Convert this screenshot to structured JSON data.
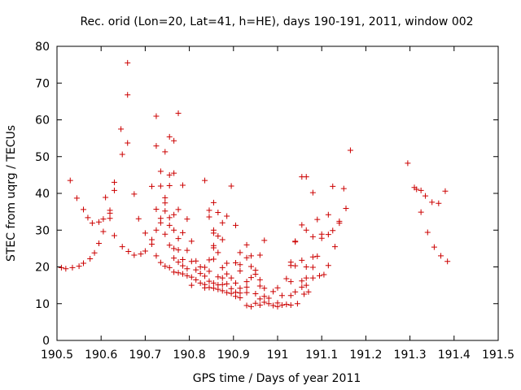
{
  "chart_data": {
    "type": "scatter",
    "title": "Rec. orid (Lon=20, Lat=41, h=HE), days 190-191, 2011, window 002",
    "xlabel": "GPS time / Days of year 2011",
    "ylabel": "STEC from uqrg / TECUs",
    "xlim": [
      190.5,
      191.5
    ],
    "ylim": [
      0,
      80
    ],
    "xticks": [
      190.5,
      190.6,
      190.7,
      190.8,
      190.9,
      191,
      191.1,
      191.2,
      191.3,
      191.4,
      191.5
    ],
    "xtick_labels": [
      "190.5",
      "190.6",
      "190.7",
      "190.8",
      "190.9",
      "191",
      "191.1",
      "191.2",
      "191.3",
      "191.4",
      "191.5"
    ],
    "yticks": [
      0,
      10,
      20,
      30,
      40,
      50,
      60,
      70,
      80
    ],
    "ytick_labels": [
      "0",
      "10",
      "20",
      "30",
      "40",
      "50",
      "60",
      "70",
      "80"
    ],
    "grid": false,
    "marker": "+",
    "marker_color": "#cc0000",
    "points": [
      [
        190.51,
        19.8
      ],
      [
        190.52,
        19.5
      ],
      [
        190.53,
        43.5
      ],
      [
        190.535,
        19.8
      ],
      [
        190.545,
        38.7
      ],
      [
        190.55,
        20.2
      ],
      [
        190.56,
        35.6
      ],
      [
        190.56,
        21.0
      ],
      [
        190.57,
        33.4
      ],
      [
        190.575,
        22.2
      ],
      [
        190.58,
        31.9
      ],
      [
        190.585,
        23.8
      ],
      [
        190.595,
        32.2
      ],
      [
        190.595,
        26.4
      ],
      [
        190.605,
        33.0
      ],
      [
        190.605,
        29.6
      ],
      [
        190.61,
        38.9
      ],
      [
        190.62,
        35.4
      ],
      [
        190.62,
        34.6
      ],
      [
        190.62,
        33.2
      ],
      [
        190.63,
        43.0
      ],
      [
        190.63,
        40.8
      ],
      [
        190.63,
        28.5
      ],
      [
        190.645,
        57.5
      ],
      [
        190.648,
        50.6
      ],
      [
        190.648,
        25.5
      ],
      [
        190.66,
        75.5
      ],
      [
        190.66,
        66.8
      ],
      [
        190.66,
        53.7
      ],
      [
        190.662,
        24.2
      ],
      [
        190.675,
        39.8
      ],
      [
        190.675,
        23.2
      ],
      [
        190.685,
        33.1
      ],
      [
        190.69,
        23.5
      ],
      [
        190.7,
        29.2
      ],
      [
        190.7,
        24.3
      ],
      [
        190.715,
        41.9
      ],
      [
        190.715,
        27.4
      ],
      [
        190.715,
        26.2
      ],
      [
        190.725,
        61.0
      ],
      [
        190.725,
        52.9
      ],
      [
        190.725,
        35.7
      ],
      [
        190.725,
        30.0
      ],
      [
        190.725,
        23.0
      ],
      [
        190.735,
        46.0
      ],
      [
        190.735,
        42.0
      ],
      [
        190.735,
        33.2
      ],
      [
        190.735,
        32.0
      ],
      [
        190.735,
        21.2
      ],
      [
        190.745,
        51.3
      ],
      [
        190.745,
        38.8
      ],
      [
        190.745,
        37.4
      ],
      [
        190.745,
        35.2
      ],
      [
        190.745,
        28.9
      ],
      [
        190.745,
        20.2
      ],
      [
        190.755,
        55.4
      ],
      [
        190.755,
        45.0
      ],
      [
        190.755,
        42.1
      ],
      [
        190.755,
        33.4
      ],
      [
        190.755,
        31.3
      ],
      [
        190.755,
        25.9
      ],
      [
        190.755,
        19.8
      ],
      [
        190.765,
        54.3
      ],
      [
        190.765,
        45.5
      ],
      [
        190.765,
        34.2
      ],
      [
        190.765,
        30.0
      ],
      [
        190.765,
        25.0
      ],
      [
        190.765,
        22.4
      ],
      [
        190.765,
        18.6
      ],
      [
        190.775,
        61.8
      ],
      [
        190.775,
        35.6
      ],
      [
        190.775,
        27.7
      ],
      [
        190.775,
        24.6
      ],
      [
        190.775,
        21.3
      ],
      [
        190.775,
        18.4
      ],
      [
        190.785,
        42.2
      ],
      [
        190.785,
        29.3
      ],
      [
        190.785,
        22.0
      ],
      [
        190.785,
        20.3
      ],
      [
        190.785,
        18.1
      ],
      [
        190.795,
        33.0
      ],
      [
        190.795,
        24.5
      ],
      [
        190.795,
        19.5
      ],
      [
        190.795,
        17.6
      ],
      [
        190.805,
        27.0
      ],
      [
        190.805,
        21.5
      ],
      [
        190.805,
        17.2
      ],
      [
        190.805,
        15.0
      ],
      [
        190.815,
        21.6
      ],
      [
        190.815,
        19.2
      ],
      [
        190.815,
        16.5
      ],
      [
        190.825,
        20.0
      ],
      [
        190.825,
        18.2
      ],
      [
        190.825,
        15.6
      ],
      [
        190.835,
        43.5
      ],
      [
        190.835,
        19.9
      ],
      [
        190.835,
        17.5
      ],
      [
        190.835,
        15.2
      ],
      [
        190.835,
        14.3
      ],
      [
        190.845,
        35.4
      ],
      [
        190.845,
        33.6
      ],
      [
        190.845,
        21.9
      ],
      [
        190.845,
        18.8
      ],
      [
        190.845,
        16.1
      ],
      [
        190.845,
        14.4
      ],
      [
        190.855,
        37.5
      ],
      [
        190.855,
        30.0
      ],
      [
        190.855,
        29.2
      ],
      [
        190.855,
        25.8
      ],
      [
        190.855,
        25.2
      ],
      [
        190.855,
        22.1
      ],
      [
        190.855,
        15.6
      ],
      [
        190.855,
        14.2
      ],
      [
        190.865,
        34.8
      ],
      [
        190.865,
        28.4
      ],
      [
        190.865,
        23.9
      ],
      [
        190.865,
        17.3
      ],
      [
        190.865,
        15.1
      ],
      [
        190.865,
        13.9
      ],
      [
        190.875,
        32.0
      ],
      [
        190.875,
        27.4
      ],
      [
        190.875,
        19.8
      ],
      [
        190.875,
        17.0
      ],
      [
        190.875,
        15.2
      ],
      [
        190.875,
        13.5
      ],
      [
        190.885,
        33.8
      ],
      [
        190.885,
        21.0
      ],
      [
        190.885,
        18.1
      ],
      [
        190.885,
        15.4
      ],
      [
        190.885,
        13.0
      ],
      [
        190.895,
        42.0
      ],
      [
        190.895,
        17.0
      ],
      [
        190.895,
        14.1
      ],
      [
        190.895,
        12.8
      ],
      [
        190.905,
        31.3
      ],
      [
        190.905,
        21.1
      ],
      [
        190.905,
        15.6
      ],
      [
        190.905,
        13.1
      ],
      [
        190.905,
        12.0
      ],
      [
        190.915,
        23.9
      ],
      [
        190.915,
        20.6
      ],
      [
        190.915,
        18.9
      ],
      [
        190.915,
        14.2
      ],
      [
        190.915,
        12.9
      ],
      [
        190.915,
        11.6
      ],
      [
        190.93,
        26.0
      ],
      [
        190.93,
        22.5
      ],
      [
        190.93,
        16.0
      ],
      [
        190.93,
        14.5
      ],
      [
        190.93,
        13.0
      ],
      [
        190.93,
        9.5
      ],
      [
        190.94,
        23.0
      ],
      [
        190.94,
        20.1
      ],
      [
        190.94,
        17.1
      ],
      [
        190.94,
        9.2
      ],
      [
        190.95,
        19.1
      ],
      [
        190.95,
        18.0
      ],
      [
        190.95,
        12.7
      ],
      [
        190.95,
        10.1
      ],
      [
        190.96,
        23.2
      ],
      [
        190.96,
        16.5
      ],
      [
        190.96,
        14.8
      ],
      [
        190.96,
        11.3
      ],
      [
        190.96,
        9.6
      ],
      [
        190.97,
        27.2
      ],
      [
        190.97,
        14.2
      ],
      [
        190.97,
        12.0
      ],
      [
        190.97,
        10.4
      ],
      [
        190.98,
        11.5
      ],
      [
        190.98,
        10.0
      ],
      [
        190.99,
        13.3
      ],
      [
        190.99,
        9.5
      ],
      [
        191.0,
        14.3
      ],
      [
        191.0,
        10.2
      ],
      [
        191.0,
        9.2
      ],
      [
        191.01,
        12.2
      ],
      [
        191.01,
        9.6
      ],
      [
        191.02,
        16.8
      ],
      [
        191.02,
        9.8
      ],
      [
        191.03,
        16.0
      ],
      [
        191.03,
        21.3
      ],
      [
        191.03,
        20.4
      ],
      [
        191.03,
        12.2
      ],
      [
        191.03,
        9.6
      ],
      [
        191.04,
        27.0
      ],
      [
        191.04,
        26.8
      ],
      [
        191.04,
        20.3
      ],
      [
        191.04,
        13.2
      ],
      [
        191.045,
        10.0
      ],
      [
        191.055,
        44.5
      ],
      [
        191.055,
        31.4
      ],
      [
        191.055,
        21.8
      ],
      [
        191.055,
        16.2
      ],
      [
        191.055,
        14.5
      ],
      [
        191.06,
        12.6
      ],
      [
        191.065,
        44.5
      ],
      [
        191.065,
        30.0
      ],
      [
        191.065,
        20.0
      ],
      [
        191.065,
        17.0
      ],
      [
        191.065,
        15.0
      ],
      [
        191.07,
        13.2
      ],
      [
        191.08,
        40.2
      ],
      [
        191.08,
        28.2
      ],
      [
        191.08,
        22.7
      ],
      [
        191.08,
        19.9
      ],
      [
        191.08,
        17.0
      ],
      [
        191.09,
        32.9
      ],
      [
        191.09,
        22.9
      ],
      [
        191.095,
        17.6
      ],
      [
        191.1,
        28.9
      ],
      [
        191.1,
        27.8
      ],
      [
        191.105,
        17.9
      ],
      [
        191.115,
        34.2
      ],
      [
        191.115,
        28.8
      ],
      [
        191.115,
        20.4
      ],
      [
        191.125,
        41.9
      ],
      [
        191.125,
        29.9
      ],
      [
        191.13,
        25.5
      ],
      [
        191.14,
        32.4
      ],
      [
        191.14,
        31.9
      ],
      [
        191.15,
        41.3
      ],
      [
        191.155,
        35.9
      ],
      [
        191.165,
        51.7
      ],
      [
        191.295,
        48.2
      ],
      [
        191.31,
        41.6
      ],
      [
        191.315,
        41.1
      ],
      [
        191.325,
        40.8
      ],
      [
        191.325,
        34.9
      ],
      [
        191.335,
        39.3
      ],
      [
        191.34,
        29.4
      ],
      [
        191.35,
        37.6
      ],
      [
        191.355,
        25.4
      ],
      [
        191.365,
        37.3
      ],
      [
        191.37,
        23.0
      ],
      [
        191.38,
        40.6
      ],
      [
        191.385,
        21.5
      ]
    ]
  }
}
